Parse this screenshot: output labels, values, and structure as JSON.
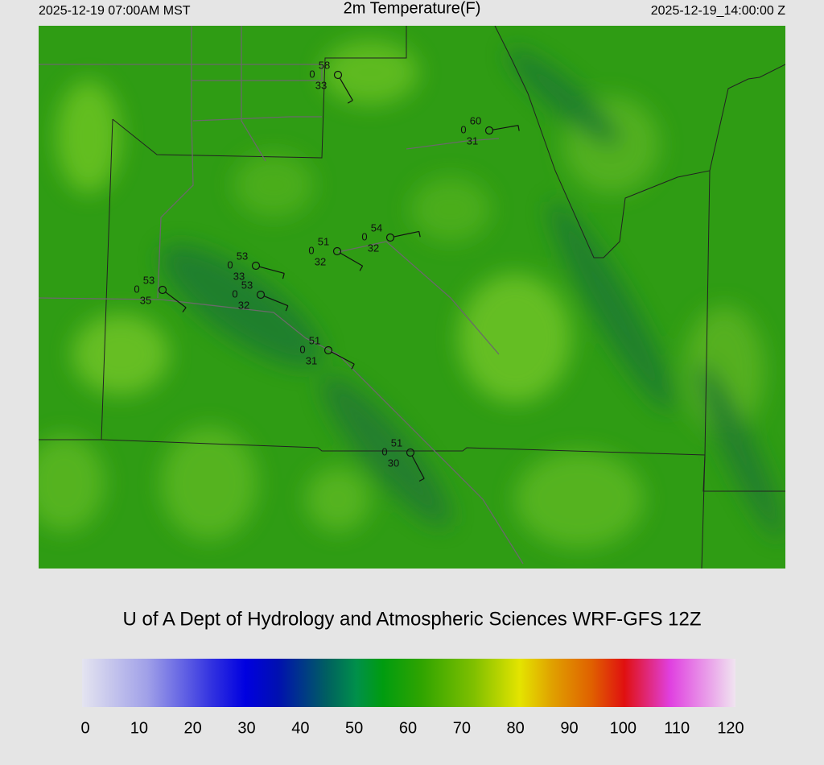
{
  "header": {
    "left": "2025-12-19 07:00AM MST",
    "title": "2m Temperature(F)",
    "right": "2025-12-19_14:00:00 Z"
  },
  "footer": "U of A Dept of Hydrology and Atmospheric Sciences WRF-GFS 12Z",
  "colorbar": {
    "range": [
      0,
      120
    ],
    "ticks": [
      0,
      10,
      20,
      30,
      40,
      50,
      60,
      70,
      80,
      90,
      100,
      110,
      120
    ]
  },
  "stations": [
    {
      "temperature": 58,
      "wind": 0,
      "dewpoint": 33
    },
    {
      "temperature": 60,
      "wind": 0,
      "dewpoint": 31
    },
    {
      "temperature": 54,
      "wind": 0,
      "dewpoint": 32
    },
    {
      "temperature": 51,
      "wind": 0,
      "dewpoint": 32
    },
    {
      "temperature": 53,
      "wind": 0,
      "dewpoint": 33
    },
    {
      "temperature": 53,
      "wind": 0,
      "dewpoint": 35
    },
    {
      "temperature": 53,
      "wind": 0,
      "dewpoint": 32
    },
    {
      "temperature": 51,
      "wind": 0,
      "dewpoint": 31
    },
    {
      "temperature": 51,
      "wind": 0,
      "dewpoint": 30
    }
  ]
}
